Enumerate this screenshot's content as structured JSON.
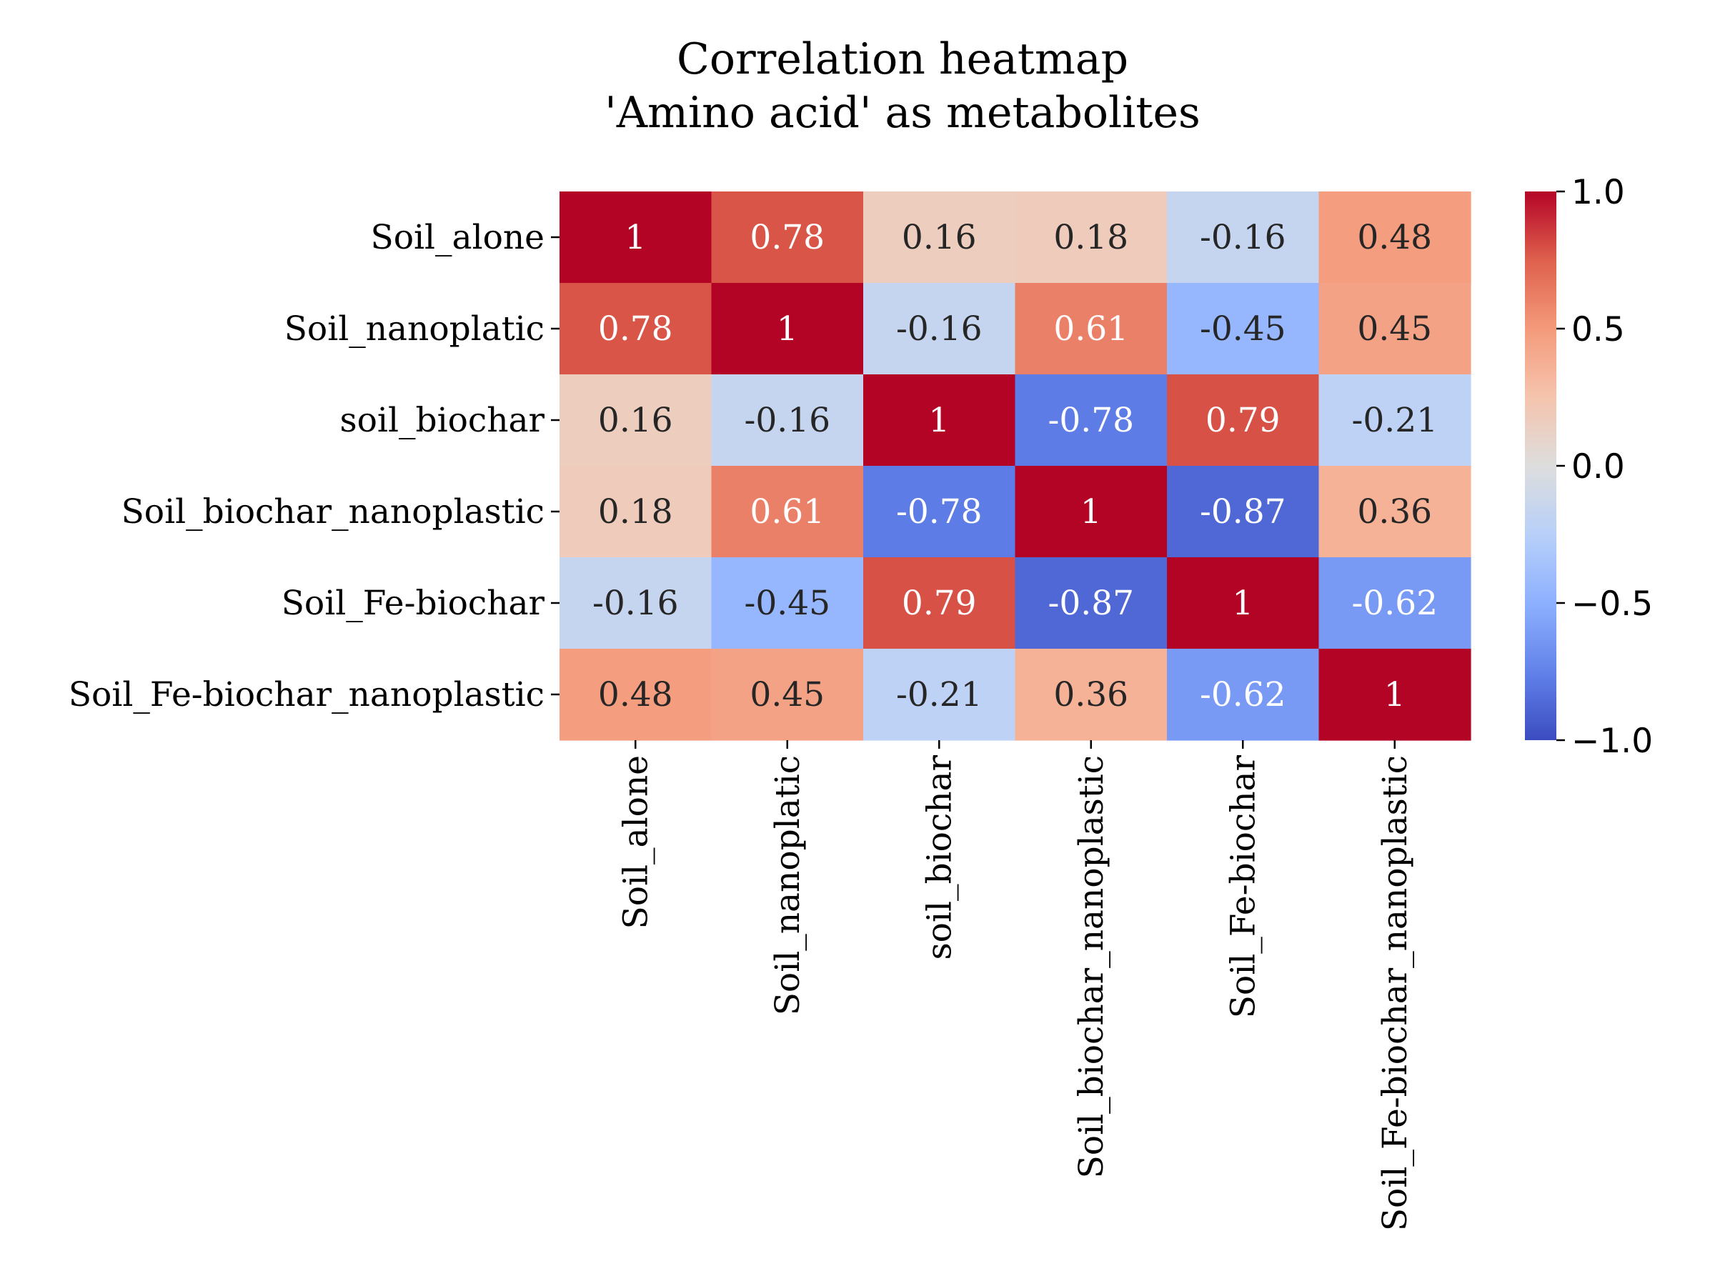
{
  "chart_data": {
    "type": "heatmap",
    "title": "Correlation heatmap\n'Amino acid' as metabolites",
    "title_lines": [
      "Correlation heatmap",
      "'Amino acid' as metabolites"
    ],
    "xlabel": "",
    "ylabel": "",
    "row_labels": [
      "Soil_alone",
      "Soil_nanoplatic",
      "soil_biochar",
      "Soil_biochar_nanoplastic",
      "Soil_Fe-biochar",
      "Soil_Fe-biochar_nanoplastic"
    ],
    "col_labels": [
      "Soil_alone",
      "Soil_nanoplatic",
      "soil_biochar",
      "Soil_biochar_nanoplastic",
      "Soil_Fe-biochar",
      "Soil_Fe-biochar_nanoplastic"
    ],
    "values": [
      [
        1,
        0.78,
        0.16,
        0.18,
        -0.16,
        0.48
      ],
      [
        0.78,
        1,
        -0.16,
        0.61,
        -0.45,
        0.45
      ],
      [
        0.16,
        -0.16,
        1,
        -0.78,
        0.79,
        -0.21
      ],
      [
        0.18,
        0.61,
        -0.78,
        1,
        -0.87,
        0.36
      ],
      [
        -0.16,
        -0.45,
        0.79,
        -0.87,
        1,
        -0.62
      ],
      [
        0.48,
        0.45,
        -0.21,
        0.36,
        -0.62,
        1
      ]
    ],
    "annotations": [
      [
        "1",
        "0.78",
        "0.16",
        "0.18",
        "-0.16",
        "0.48"
      ],
      [
        "0.78",
        "1",
        "-0.16",
        "0.61",
        "-0.45",
        "0.45"
      ],
      [
        "0.16",
        "-0.16",
        "1",
        "-0.78",
        "0.79",
        "-0.21"
      ],
      [
        "0.18",
        "0.61",
        "-0.78",
        "1",
        "-0.87",
        "0.36"
      ],
      [
        "-0.16",
        "-0.45",
        "0.79",
        "-0.87",
        "1",
        "-0.62"
      ],
      [
        "0.48",
        "0.45",
        "-0.21",
        "0.36",
        "-0.62",
        "1"
      ]
    ],
    "colormap": "coolwarm",
    "vmin": -1.0,
    "vmax": 1.0,
    "colorbar": {
      "ticks": [
        1.0,
        0.5,
        0.0,
        -0.5,
        -1.0
      ],
      "tick_labels": [
        "1.0",
        "0.5",
        "0.0",
        "−0.5",
        "−1.0"
      ]
    },
    "grid": false,
    "legend": "colorbar at right"
  }
}
